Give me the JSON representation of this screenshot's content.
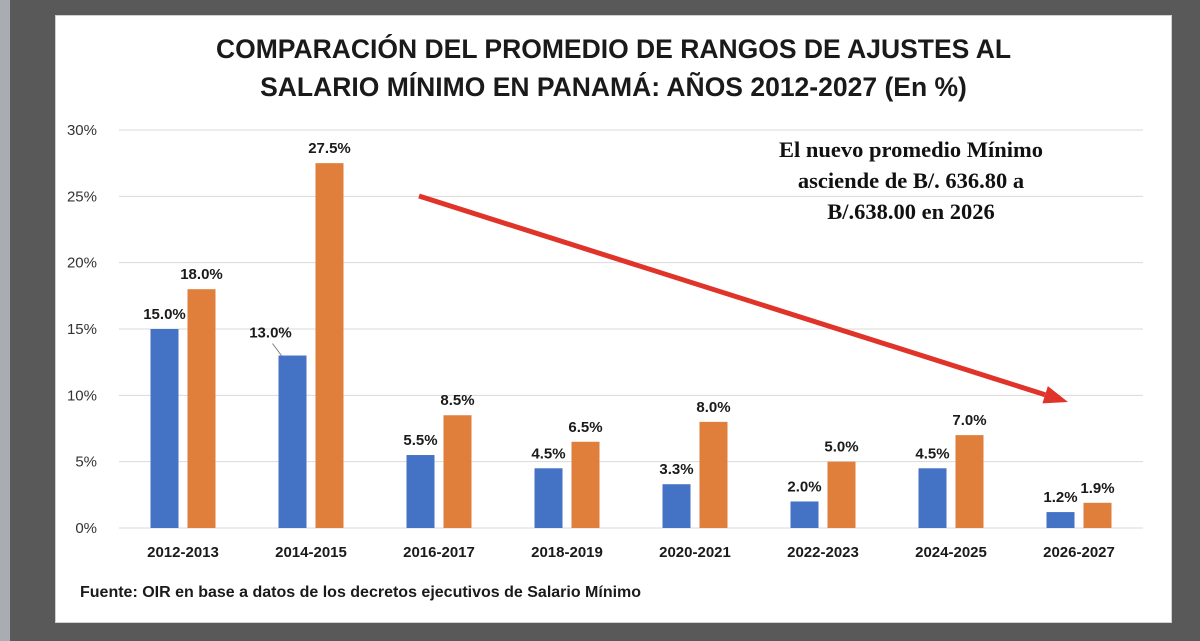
{
  "chart_data": {
    "type": "bar",
    "title_lines": [
      "COMPARACIÓN DEL PROMEDIO DE RANGOS DE AJUSTES AL",
      "SALARIO MÍNIMO EN PANAMÁ: AÑOS 2012-2027  (En %)"
    ],
    "categories": [
      "2012-2013",
      "2014-2015",
      "2016-2017",
      "2018-2019",
      "2020-2021",
      "2022-2023",
      "2024-2025",
      "2026-2027"
    ],
    "series": [
      {
        "color": "#4472c4",
        "values": [
          15.0,
          13.0,
          5.5,
          4.5,
          3.3,
          2.0,
          4.5,
          1.2
        ],
        "labels": [
          "15.0%",
          "13.0%",
          "5.5%",
          "4.5%",
          "3.3%",
          "2.0%",
          "4.5%",
          "1.2%"
        ]
      },
      {
        "color": "#e07e3c",
        "values": [
          18.0,
          27.5,
          8.5,
          6.5,
          8.0,
          5.0,
          7.0,
          1.9
        ],
        "labels": [
          "18.0%",
          "27.5%",
          "8.5%",
          "6.5%",
          "8.0%",
          "5.0%",
          "7.0%",
          "1.9%"
        ]
      }
    ],
    "y_ticks": [
      0,
      5,
      10,
      15,
      20,
      25,
      30
    ],
    "y_tick_labels": [
      "0%",
      "5%",
      "10%",
      "15%",
      "20%",
      "25%",
      "30%"
    ],
    "ylim": [
      0,
      30
    ],
    "grid": true,
    "legend": "none",
    "annotation_lines": [
      "El nuevo promedio Mínimo",
      "asciende de B/. 636.80 a",
      "B/.638.00 en 2026"
    ],
    "arrow_color": "#e0342a",
    "source": "Fuente: OIR en base a datos de los decretos ejecutivos de Salario Mínimo"
  }
}
